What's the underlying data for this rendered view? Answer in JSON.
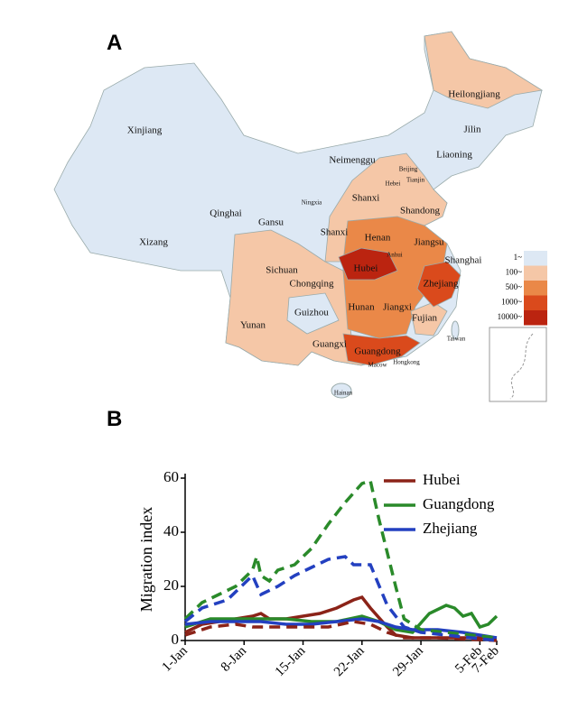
{
  "panel_labels": [
    "A",
    "B"
  ],
  "map": {
    "labels": [
      "Heilongjiang",
      "Jilin",
      "Liaoning",
      "Xinjiang",
      "Neimenggu",
      "Beijing",
      "Tianjin",
      "Hebei",
      "Ningxia",
      "Shanxi",
      "Qinghai",
      "Gansu",
      "Shandong",
      "Xizang",
      "Shanxi",
      "Henan",
      "Jiangsu",
      "Anhui",
      "Shanghai",
      "Sichuan",
      "Hubei",
      "Zhejiang",
      "Chongqing",
      "Hunan",
      "Jiangxi",
      "Guizhou",
      "Fujian",
      "Yunan",
      "Taiwan",
      "Guangxi",
      "Guangdong",
      "Hongkong",
      "Macow",
      "Hainan"
    ],
    "legend": [
      {
        "label": "1~",
        "color": "#dde8f4"
      },
      {
        "label": "100~",
        "color": "#f5c7a7"
      },
      {
        "label": "500~",
        "color": "#ea8848"
      },
      {
        "label": "1000~",
        "color": "#da4a1c"
      },
      {
        "label": "10000~",
        "color": "#bb2410"
      }
    ]
  },
  "chart_data": {
    "type": "line",
    "y_label": "Migration index",
    "xlim": [
      0,
      37
    ],
    "ylim": [
      0,
      60
    ],
    "xticks": [
      {
        "value": 0,
        "label": "1-Jan"
      },
      {
        "value": 7,
        "label": "8-Jan"
      },
      {
        "value": 14,
        "label": "15-Jan"
      },
      {
        "value": 21,
        "label": "22-Jan"
      },
      {
        "value": 28,
        "label": "29-Jan"
      },
      {
        "value": 35,
        "label": "5-Feb"
      },
      {
        "value": 37,
        "label": "7-Feb"
      }
    ],
    "yticks": [
      0,
      20,
      40,
      60
    ],
    "series": [
      {
        "name": "Hubei",
        "color": "#8b2318",
        "dash": false,
        "x": [
          0,
          2,
          4,
          6,
          8,
          9,
          10,
          12,
          14,
          16,
          18,
          20,
          21,
          22,
          24,
          25,
          27,
          30,
          33,
          37
        ],
        "values": [
          3,
          6,
          7,
          8,
          9,
          10,
          8,
          8,
          9,
          10,
          12,
          15,
          16,
          12,
          5,
          2,
          1,
          1,
          1,
          1
        ]
      },
      {
        "name": "Guangdong",
        "color": "#2a8a2a",
        "dash": false,
        "x": [
          0,
          3,
          6,
          9,
          12,
          15,
          18,
          21,
          23,
          25,
          27,
          29,
          31,
          32,
          33,
          34,
          35,
          36,
          37
        ],
        "values": [
          5,
          8,
          8,
          8,
          8,
          7,
          7,
          9,
          7,
          4,
          3,
          10,
          13,
          12,
          9,
          10,
          5,
          6,
          9
        ]
      },
      {
        "name": "Zhejiang",
        "color": "#2340c0",
        "dash": false,
        "x": [
          0,
          3,
          6,
          9,
          12,
          15,
          18,
          21,
          23,
          25,
          27,
          30,
          33,
          37
        ],
        "values": [
          6,
          7,
          7,
          7,
          6,
          6,
          7,
          8,
          7,
          5,
          4,
          4,
          3,
          1
        ]
      },
      {
        "color": "#8b2318",
        "dash": true,
        "x": [
          0,
          3,
          6,
          8,
          11,
          14,
          17,
          20,
          22,
          24,
          26,
          30,
          37
        ],
        "values": [
          2,
          5,
          6,
          5,
          5,
          5,
          5,
          7,
          6,
          3,
          1,
          1,
          0
        ]
      },
      {
        "color": "#2a8a2a",
        "dash": true,
        "x": [
          0,
          2,
          4,
          6,
          8,
          8.5,
          9,
          10,
          11,
          13,
          15,
          17,
          19,
          21,
          22,
          23,
          25,
          26,
          28,
          31,
          34,
          37
        ],
        "values": [
          8,
          14,
          17,
          20,
          26,
          31,
          24,
          22,
          26,
          28,
          34,
          43,
          51,
          58,
          59,
          45,
          20,
          8,
          4,
          3,
          2,
          1
        ]
      },
      {
        "color": "#2340c0",
        "dash": true,
        "x": [
          0,
          2,
          5,
          8,
          9,
          11,
          13,
          15,
          17,
          19,
          20,
          22,
          24,
          26,
          28,
          31,
          34,
          37
        ],
        "values": [
          7,
          12,
          15,
          24,
          17,
          20,
          24,
          27,
          30,
          31,
          28,
          28,
          13,
          5,
          3,
          2,
          1,
          0
        ]
      }
    ]
  }
}
